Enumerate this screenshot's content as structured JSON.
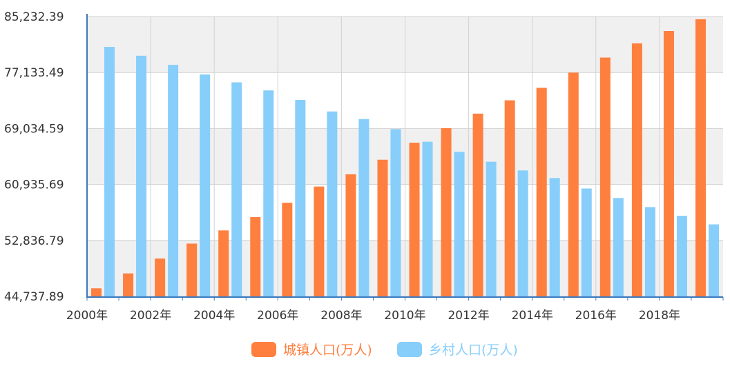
{
  "chart_data": {
    "type": "bar",
    "categories": [
      "2000年",
      "2001年",
      "2002年",
      "2003年",
      "2004年",
      "2005年",
      "2006年",
      "2007年",
      "2008年",
      "2009年",
      "2010年",
      "2011年",
      "2012年",
      "2013年",
      "2014年",
      "2015年",
      "2016年",
      "2017年",
      "2018年",
      "2019年"
    ],
    "x_tick_labels": [
      "2000年",
      "2002年",
      "2004年",
      "2006年",
      "2008年",
      "2010年",
      "2012年",
      "2014年",
      "2016年",
      "2018年"
    ],
    "y_tick_labels": [
      "44,737.89",
      "52,836.79",
      "60,935.69",
      "69,034.59",
      "77,133.49",
      "85,232.39"
    ],
    "ylim": [
      44737.89,
      85232.39
    ],
    "series": [
      {
        "name": "城镇人口(万人)",
        "color": "#ff7f3f",
        "values": [
          45906,
          48064,
          50212,
          52376,
          54283,
          56212,
          58288,
          60633,
          62403,
          64512,
          66978,
          69079,
          71182,
          73111,
          74916,
          77116,
          79298,
          81347,
          83137,
          84843
        ]
      },
      {
        "name": "乡村人口(万人)",
        "color": "#87cefa",
        "values": [
          80837,
          79563,
          78241,
          76851,
          75705,
          74544,
          73160,
          71496,
          70399,
          68938,
          67113,
          65656,
          64222,
          62961,
          61866,
          60346,
          58973,
          57661,
          56401,
          55162
        ]
      }
    ],
    "grid": true,
    "plot_background": "#f0f0f0",
    "legend_position": "bottom-center"
  }
}
